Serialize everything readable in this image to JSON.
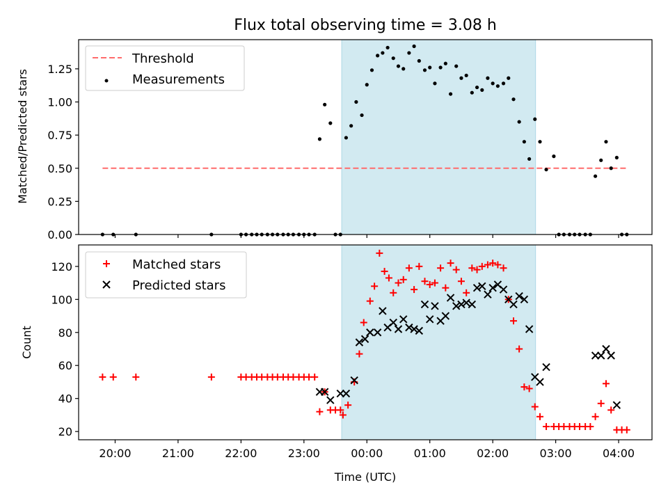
{
  "title": "Flux total observing time = 3.08 h",
  "chart_data": [
    {
      "type": "scatter",
      "ylabel": "Matched/Predicted stars",
      "xlabel": "",
      "xlim": [
        19.42,
        28.53
      ],
      "ylim": [
        0,
        1.47
      ],
      "xticks": [
        20,
        21,
        22,
        23,
        24,
        25,
        26,
        27,
        28
      ],
      "yticks": [
        0,
        0.25,
        0.5,
        0.75,
        1.0,
        1.25
      ],
      "yticklabels": [
        "0.00",
        "0.25",
        "0.50",
        "0.75",
        "1.00",
        "1.25"
      ],
      "grid": false,
      "legend": "top-left",
      "observing_window": {
        "start": 23.6,
        "end": 26.68,
        "color": "#add8e6"
      },
      "threshold": {
        "name": "Threshold",
        "y": 0.5,
        "x_range": [
          19.8,
          28.15
        ],
        "color": "#ff6b6b"
      },
      "series": [
        {
          "name": "Measurements",
          "color": "#000000",
          "marker": "dot",
          "x": [
            19.8,
            19.97,
            20.33,
            21.53,
            22.0,
            22.08,
            22.17,
            22.25,
            22.33,
            22.42,
            22.5,
            22.58,
            22.67,
            22.75,
            22.83,
            22.92,
            23.0,
            23.08,
            23.17,
            23.25,
            23.33,
            23.42,
            23.5,
            23.58,
            23.67,
            23.75,
            23.83,
            23.92,
            24.0,
            24.08,
            24.17,
            24.25,
            24.33,
            24.42,
            24.5,
            24.58,
            24.67,
            24.75,
            24.83,
            24.92,
            25.0,
            25.08,
            25.17,
            25.25,
            25.33,
            25.42,
            25.5,
            25.58,
            25.67,
            25.75,
            25.83,
            25.92,
            26.0,
            26.08,
            26.17,
            26.25,
            26.33,
            26.42,
            26.5,
            26.58,
            26.67,
            26.75,
            26.85,
            26.97,
            27.05,
            27.13,
            27.22,
            27.3,
            27.38,
            27.47,
            27.55,
            27.63,
            27.72,
            27.8,
            27.88,
            27.97,
            28.05,
            28.13
          ],
          "y": [
            0,
            0,
            0,
            0,
            0,
            0,
            0,
            0,
            0,
            0,
            0,
            0,
            0,
            0,
            0,
            0,
            0,
            0,
            0,
            0.72,
            0.98,
            0.84,
            0,
            0,
            0.73,
            0.82,
            1.0,
            0.9,
            1.13,
            1.24,
            1.35,
            1.37,
            1.41,
            1.33,
            1.27,
            1.25,
            1.37,
            1.42,
            1.31,
            1.24,
            1.26,
            1.14,
            1.26,
            1.29,
            1.06,
            1.27,
            1.18,
            1.2,
            1.07,
            1.11,
            1.09,
            1.18,
            1.14,
            1.12,
            1.14,
            1.18,
            1.02,
            0.85,
            0.7,
            0.57,
            0.87,
            0.7,
            0.49,
            0.59,
            0,
            0,
            0,
            0,
            0,
            0,
            0,
            0.44,
            0.56,
            0.7,
            0.5,
            0.58,
            0,
            0
          ]
        }
      ]
    },
    {
      "type": "scatter",
      "ylabel": "Count",
      "xlabel": "Time (UTC)",
      "xlim": [
        19.42,
        28.53
      ],
      "ylim": [
        15,
        133
      ],
      "xticks": [
        20,
        21,
        22,
        23,
        24,
        25,
        26,
        27,
        28
      ],
      "xticklabels": [
        "20:00",
        "21:00",
        "22:00",
        "23:00",
        "00:00",
        "01:00",
        "02:00",
        "03:00",
        "04:00"
      ],
      "yticks": [
        20,
        40,
        60,
        80,
        100,
        120
      ],
      "grid": false,
      "legend": "top-left",
      "observing_window": {
        "start": 23.6,
        "end": 26.68,
        "color": "#add8e6"
      },
      "series": [
        {
          "name": "Matched stars",
          "color": "#ff0000",
          "marker": "plus",
          "x": [
            19.8,
            19.97,
            20.33,
            21.53,
            22.0,
            22.08,
            22.17,
            22.25,
            22.33,
            22.42,
            22.5,
            22.58,
            22.67,
            22.75,
            22.83,
            22.92,
            23.0,
            23.08,
            23.17,
            23.25,
            23.33,
            23.42,
            23.5,
            23.58,
            23.62,
            23.7,
            23.8,
            23.88,
            23.95,
            24.05,
            24.12,
            24.2,
            24.28,
            24.35,
            24.42,
            24.5,
            24.58,
            24.67,
            24.75,
            24.83,
            24.92,
            25.0,
            25.08,
            25.17,
            25.25,
            25.33,
            25.42,
            25.5,
            25.58,
            25.67,
            25.75,
            25.83,
            25.92,
            26.0,
            26.08,
            26.17,
            26.25,
            26.33,
            26.42,
            26.5,
            26.58,
            26.67,
            26.75,
            26.85,
            26.97,
            27.05,
            27.13,
            27.22,
            27.3,
            27.38,
            27.47,
            27.55,
            27.63,
            27.72,
            27.8,
            27.88,
            27.97,
            28.05,
            28.13
          ],
          "y": [
            53,
            53,
            53,
            53,
            53,
            53,
            53,
            53,
            53,
            53,
            53,
            53,
            53,
            53,
            53,
            53,
            53,
            53,
            53,
            32,
            44,
            33,
            33,
            33,
            30,
            36,
            50,
            67,
            86,
            99,
            108,
            128,
            117,
            113,
            104,
            110,
            112,
            119,
            106,
            120,
            111,
            109,
            110,
            119,
            107,
            122,
            118,
            111,
            104,
            119,
            118,
            120,
            121,
            122,
            121,
            119,
            100,
            87,
            70,
            47,
            46,
            35,
            29,
            23,
            23,
            23,
            23,
            23,
            23,
            23,
            23,
            23,
            29,
            37,
            49,
            33,
            21,
            21,
            21
          ]
        },
        {
          "name": "Predicted stars",
          "color": "#000000",
          "marker": "x",
          "x": [
            23.25,
            23.33,
            23.42,
            23.58,
            23.67,
            23.8,
            23.88,
            23.97,
            24.05,
            24.17,
            24.25,
            24.33,
            24.42,
            24.5,
            24.58,
            24.67,
            24.75,
            24.83,
            24.92,
            25.0,
            25.08,
            25.17,
            25.25,
            25.33,
            25.42,
            25.5,
            25.58,
            25.67,
            25.75,
            25.83,
            25.92,
            26.0,
            26.08,
            26.17,
            26.25,
            26.33,
            26.42,
            26.5,
            26.58,
            26.67,
            26.75,
            26.85,
            27.63,
            27.72,
            27.8,
            27.88,
            27.97
          ],
          "y": [
            44,
            44,
            39,
            43,
            43,
            51,
            74,
            76,
            80,
            80,
            93,
            83,
            86,
            82,
            88,
            83,
            82,
            81,
            97,
            88,
            96,
            87,
            90,
            101,
            96,
            97,
            98,
            97,
            107,
            108,
            103,
            107,
            109,
            106,
            100,
            97,
            102,
            100,
            82,
            53,
            50,
            59,
            66,
            66,
            70,
            66,
            36
          ]
        }
      ]
    }
  ]
}
